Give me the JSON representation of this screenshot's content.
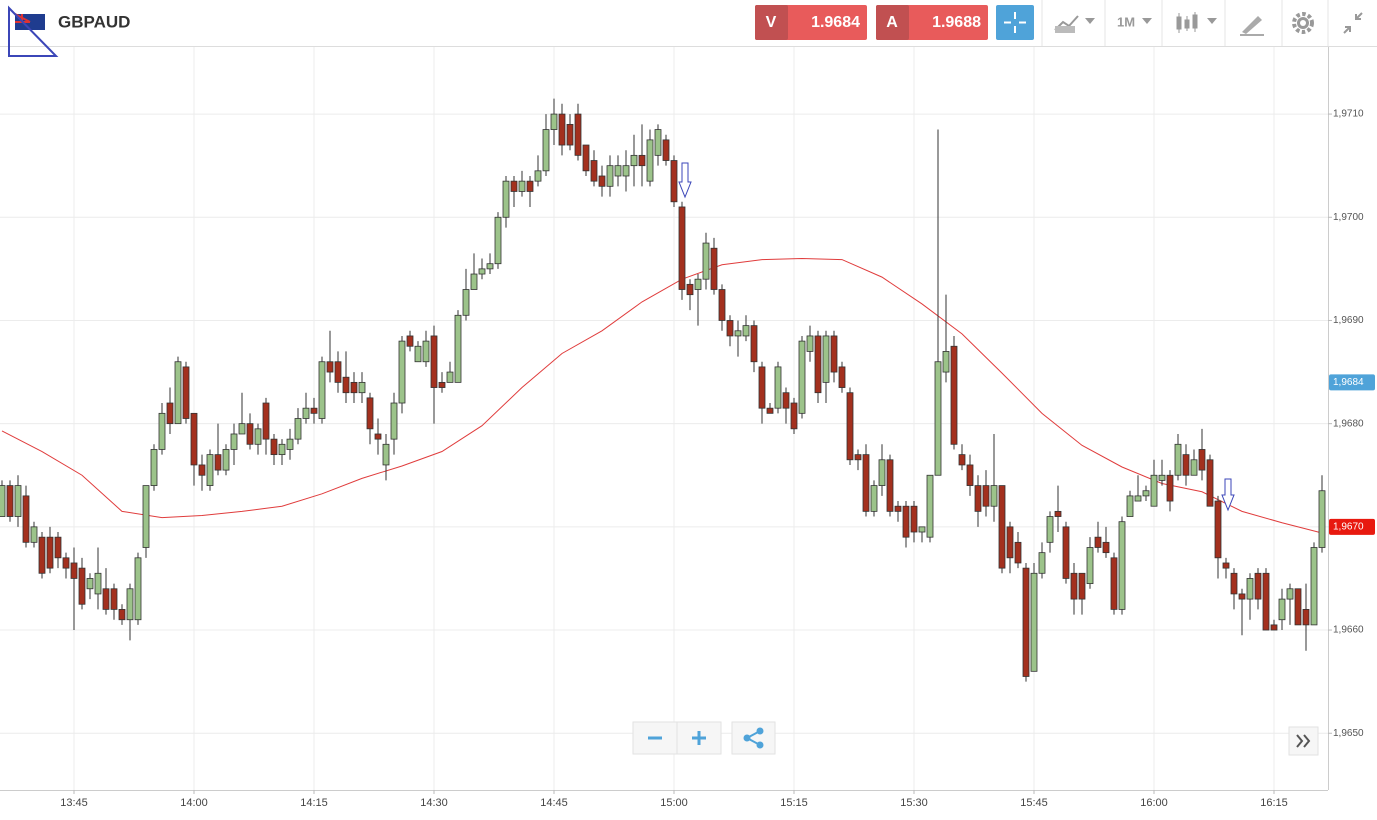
{
  "header": {
    "symbol": "GBPAUD",
    "sell": {
      "label": "V",
      "price": 1.9684
    },
    "buy": {
      "label": "A",
      "price": 1.9688
    },
    "timeframe": "1M"
  },
  "chart_data": {
    "type": "candlestick",
    "x": [
      "13:36",
      "13:37",
      "13:38",
      "13:39",
      "13:40",
      "13:41",
      "13:42",
      "13:43",
      "13:44",
      "13:45",
      "13:46",
      "13:47",
      "13:48",
      "13:49",
      "13:50",
      "13:51",
      "13:52",
      "13:53",
      "13:54",
      "13:55",
      "13:56",
      "13:57",
      "13:58",
      "13:59",
      "14:00",
      "14:01",
      "14:02",
      "14:03",
      "14:04",
      "14:05",
      "14:06",
      "14:07",
      "14:08",
      "14:09",
      "14:10",
      "14:11",
      "14:12",
      "14:13",
      "14:14",
      "14:15",
      "14:16",
      "14:17",
      "14:18",
      "14:19",
      "14:20",
      "14:21",
      "14:22",
      "14:23",
      "14:24",
      "14:25",
      "14:26",
      "14:27",
      "14:28",
      "14:29",
      "14:30",
      "14:31",
      "14:32",
      "14:33",
      "14:34",
      "14:35",
      "14:36",
      "14:37",
      "14:38",
      "14:39",
      "14:40",
      "14:41",
      "14:42",
      "14:43",
      "14:44",
      "14:45",
      "14:46",
      "14:47",
      "14:48",
      "14:49",
      "14:50",
      "14:51",
      "14:52",
      "14:53",
      "14:54",
      "14:55",
      "14:56",
      "14:57",
      "14:58",
      "14:59",
      "15:00",
      "15:01",
      "15:02",
      "15:03",
      "15:04",
      "15:05",
      "15:06",
      "15:07",
      "15:08",
      "15:09",
      "15:10",
      "15:11",
      "15:12",
      "15:13",
      "15:14",
      "15:15",
      "15:16",
      "15:17",
      "15:18",
      "15:19",
      "15:20",
      "15:21",
      "15:22",
      "15:23",
      "15:24",
      "15:25",
      "15:26",
      "15:27",
      "15:28",
      "15:29",
      "15:30",
      "15:31",
      "15:32",
      "15:33",
      "15:34",
      "15:35",
      "15:36",
      "15:37",
      "15:38",
      "15:39",
      "15:40",
      "15:41",
      "15:42",
      "15:43",
      "15:44",
      "15:45",
      "15:46",
      "15:47",
      "15:48",
      "15:49",
      "15:50",
      "15:51",
      "15:52",
      "15:53",
      "15:54",
      "15:55",
      "15:56",
      "15:57",
      "15:58",
      "15:59",
      "16:00",
      "16:01",
      "16:02",
      "16:03",
      "16:04",
      "16:05",
      "16:06",
      "16:07",
      "16:08",
      "16:09",
      "16:10",
      "16:11",
      "16:12",
      "16:13",
      "16:14",
      "16:15",
      "16:16",
      "16:17",
      "16:18",
      "16:19",
      "16:20",
      "16:21"
    ],
    "open": [
      1.9671,
      1.9674,
      1.9671,
      1.9673,
      1.96685,
      1.9669,
      1.9669,
      1.9669,
      1.9667,
      1.96665,
      1.9666,
      1.9664,
      1.96635,
      1.9664,
      1.9664,
      1.9662,
      1.9661,
      1.9661,
      1.9668,
      1.9674,
      1.96775,
      1.9682,
      1.968,
      1.96855,
      1.9681,
      1.9676,
      1.9674,
      1.9677,
      1.96755,
      1.96775,
      1.9679,
      1.968,
      1.9678,
      1.9682,
      1.96785,
      1.9677,
      1.96775,
      1.96785,
      1.96805,
      1.96815,
      1.96805,
      1.9686,
      1.9686,
      1.96845,
      1.9684,
      1.9683,
      1.96825,
      1.9679,
      1.9676,
      1.96785,
      1.9682,
      1.96885,
      1.9686,
      1.9686,
      1.96885,
      1.9684,
      1.9684,
      1.9684,
      1.96905,
      1.9693,
      1.96945,
      1.9695,
      1.96955,
      1.97,
      1.97035,
      1.97025,
      1.97035,
      1.97035,
      1.97045,
      1.97085,
      1.971,
      1.9709,
      1.971,
      1.9707,
      1.97055,
      1.9704,
      1.9703,
      1.9704,
      1.9704,
      1.9705,
      1.9706,
      1.97035,
      1.9706,
      1.97075,
      1.97055,
      1.9701,
      1.96935,
      1.9693,
      1.9694,
      1.9697,
      1.9693,
      1.969,
      1.96885,
      1.96885,
      1.96895,
      1.96855,
      1.96815,
      1.96815,
      1.9683,
      1.9682,
      1.9681,
      1.9687,
      1.96885,
      1.9684,
      1.96885,
      1.96855,
      1.9683,
      1.9677,
      1.9677,
      1.96715,
      1.9674,
      1.96765,
      1.9672,
      1.9672,
      1.9672,
      1.96695,
      1.9669,
      1.9675,
      1.9685,
      1.96875,
      1.9677,
      1.9676,
      1.9674,
      1.9674,
      1.9672,
      1.9674,
      1.967,
      1.96685,
      1.9666,
      1.9656,
      1.96655,
      1.96685,
      1.96715,
      1.967,
      1.96655,
      1.96655,
      1.96645,
      1.9669,
      1.96685,
      1.9667,
      1.9662,
      1.9671,
      1.96725,
      1.9673,
      1.9672,
      1.96745,
      1.9675,
      1.9675,
      1.9677,
      1.9675,
      1.96775,
      1.96765,
      1.96725,
      1.96665,
      1.96655,
      1.96635,
      1.9663,
      1.96655,
      1.96655,
      1.96605,
      1.9661,
      1.9663,
      1.9664,
      1.9662,
      1.96605,
      1.9668
    ],
    "high": [
      1.96745,
      1.96745,
      1.9675,
      1.9674,
      1.96705,
      1.96695,
      1.967,
      1.96695,
      1.96675,
      1.9668,
      1.9667,
      1.96655,
      1.9668,
      1.9666,
      1.96645,
      1.96625,
      1.96645,
      1.96675,
      1.9674,
      1.9678,
      1.9682,
      1.96835,
      1.96865,
      1.9686,
      1.9681,
      1.9677,
      1.96775,
      1.968,
      1.9678,
      1.968,
      1.9683,
      1.9681,
      1.968,
      1.96825,
      1.9679,
      1.96785,
      1.96795,
      1.96815,
      1.9683,
      1.96825,
      1.96865,
      1.9689,
      1.9687,
      1.9687,
      1.9685,
      1.9685,
      1.9683,
      1.96805,
      1.9679,
      1.9683,
      1.96885,
      1.9689,
      1.9688,
      1.9689,
      1.96895,
      1.9685,
      1.9686,
      1.9691,
      1.9695,
      1.96965,
      1.9696,
      1.96965,
      1.97005,
      1.9704,
      1.9704,
      1.97045,
      1.9704,
      1.9706,
      1.971,
      1.97115,
      1.9711,
      1.971,
      1.9711,
      1.9707,
      1.97065,
      1.9705,
      1.9706,
      1.9706,
      1.97065,
      1.9708,
      1.9709,
      1.97085,
      1.9709,
      1.9708,
      1.9706,
      1.97015,
      1.9694,
      1.96945,
      1.96985,
      1.9698,
      1.96935,
      1.96905,
      1.969,
      1.96905,
      1.969,
      1.9686,
      1.9682,
      1.9686,
      1.96835,
      1.96825,
      1.96885,
      1.96895,
      1.9689,
      1.9689,
      1.9689,
      1.9686,
      1.96835,
      1.96775,
      1.9678,
      1.96745,
      1.9678,
      1.9677,
      1.96725,
      1.96725,
      1.96725,
      1.967,
      1.9675,
      1.97085,
      1.96925,
      1.96885,
      1.9678,
      1.9677,
      1.9675,
      1.96755,
      1.9679,
      1.9674,
      1.96705,
      1.96695,
      1.96665,
      1.96665,
      1.96685,
      1.96715,
      1.9674,
      1.96705,
      1.96665,
      1.96655,
      1.9669,
      1.96705,
      1.967,
      1.96675,
      1.9671,
      1.96735,
      1.9675,
      1.9674,
      1.96765,
      1.96765,
      1.96755,
      1.9679,
      1.9678,
      1.96775,
      1.96795,
      1.9677,
      1.9673,
      1.9667,
      1.9666,
      1.9664,
      1.96655,
      1.9666,
      1.9666,
      1.9661,
      1.9664,
      1.96645,
      1.9664,
      1.96645,
      1.96685,
      1.9675
    ],
    "low": [
      1.9671,
      1.96705,
      1.967,
      1.9668,
      1.9668,
      1.9665,
      1.96655,
      1.9666,
      1.9665,
      1.966,
      1.9662,
      1.9663,
      1.9662,
      1.96615,
      1.9661,
      1.96605,
      1.9659,
      1.96605,
      1.9667,
      1.96735,
      1.9677,
      1.9679,
      1.968,
      1.968,
      1.9674,
      1.96735,
      1.96735,
      1.9675,
      1.9675,
      1.9676,
      1.9679,
      1.96775,
      1.9677,
      1.9677,
      1.9676,
      1.9676,
      1.96765,
      1.9678,
      1.968,
      1.968,
      1.968,
      1.9684,
      1.9683,
      1.9682,
      1.9682,
      1.9682,
      1.9678,
      1.9677,
      1.96745,
      1.9677,
      1.9681,
      1.9687,
      1.9686,
      1.96855,
      1.968,
      1.9683,
      1.9684,
      1.9684,
      1.969,
      1.9693,
      1.9694,
      1.96945,
      1.9695,
      1.9699,
      1.9701,
      1.9702,
      1.9701,
      1.9703,
      1.9704,
      1.9707,
      1.9706,
      1.97065,
      1.97055,
      1.9704,
      1.9703,
      1.9702,
      1.9702,
      1.9703,
      1.97025,
      1.9703,
      1.9703,
      1.9703,
      1.9705,
      1.9705,
      1.9701,
      1.9692,
      1.9691,
      1.96895,
      1.9693,
      1.96925,
      1.9689,
      1.96875,
      1.96865,
      1.9688,
      1.9685,
      1.968,
      1.9681,
      1.9681,
      1.968,
      1.9679,
      1.96805,
      1.9686,
      1.9682,
      1.9682,
      1.9684,
      1.9683,
      1.9676,
      1.96755,
      1.9671,
      1.9671,
      1.9673,
      1.9671,
      1.96705,
      1.9668,
      1.96685,
      1.96685,
      1.96685,
      1.9675,
      1.9684,
      1.96775,
      1.96755,
      1.9673,
      1.967,
      1.9671,
      1.96705,
      1.96655,
      1.96655,
      1.9666,
      1.9655,
      1.9656,
      1.9665,
      1.96675,
      1.96695,
      1.96645,
      1.96615,
      1.96615,
      1.9664,
      1.96675,
      1.9667,
      1.96615,
      1.96615,
      1.9671,
      1.96725,
      1.96725,
      1.9672,
      1.9674,
      1.96715,
      1.96745,
      1.9674,
      1.9675,
      1.96745,
      1.9672,
      1.9665,
      1.9665,
      1.9662,
      1.96595,
      1.9661,
      1.9662,
      1.966,
      1.966,
      1.966,
      1.96605,
      1.96605,
      1.9658,
      1.96605,
      1.96675
    ],
    "close": [
      1.9674,
      1.9671,
      1.9674,
      1.96685,
      1.967,
      1.96655,
      1.9666,
      1.9667,
      1.9666,
      1.9665,
      1.96625,
      1.9665,
      1.96655,
      1.9662,
      1.9662,
      1.9661,
      1.9664,
      1.9667,
      1.9674,
      1.96775,
      1.9681,
      1.968,
      1.9686,
      1.96805,
      1.9676,
      1.9675,
      1.9677,
      1.96755,
      1.96775,
      1.9679,
      1.968,
      1.9678,
      1.96795,
      1.96785,
      1.9677,
      1.9678,
      1.96785,
      1.96805,
      1.96815,
      1.9681,
      1.9686,
      1.9685,
      1.9684,
      1.9683,
      1.9683,
      1.9684,
      1.96795,
      1.96785,
      1.9678,
      1.9682,
      1.9688,
      1.96875,
      1.96875,
      1.9688,
      1.96835,
      1.96835,
      1.9685,
      1.96905,
      1.9693,
      1.96945,
      1.9695,
      1.96955,
      1.97,
      1.97035,
      1.97025,
      1.97035,
      1.97025,
      1.97045,
      1.97085,
      1.971,
      1.9707,
      1.9707,
      1.9706,
      1.97045,
      1.97035,
      1.9703,
      1.9705,
      1.9705,
      1.9705,
      1.9706,
      1.9705,
      1.97075,
      1.97085,
      1.97055,
      1.97015,
      1.9693,
      1.96925,
      1.9694,
      1.96975,
      1.9693,
      1.969,
      1.96885,
      1.9689,
      1.96895,
      1.9686,
      1.96815,
      1.9681,
      1.96855,
      1.96815,
      1.96795,
      1.9688,
      1.96885,
      1.9683,
      1.96885,
      1.9685,
      1.96835,
      1.96765,
      1.96765,
      1.96715,
      1.9674,
      1.96765,
      1.96715,
      1.96715,
      1.9669,
      1.96695,
      1.967,
      1.9675,
      1.9686,
      1.9687,
      1.9678,
      1.9676,
      1.9674,
      1.96715,
      1.9672,
      1.9674,
      1.9666,
      1.9667,
      1.96665,
      1.96555,
      1.96655,
      1.96675,
      1.9671,
      1.9671,
      1.9665,
      1.9663,
      1.9663,
      1.9668,
      1.9668,
      1.96675,
      1.9662,
      1.96705,
      1.9673,
      1.9673,
      1.96735,
      1.9675,
      1.9675,
      1.96725,
      1.9678,
      1.9675,
      1.96765,
      1.96755,
      1.9672,
      1.9667,
      1.9666,
      1.96635,
      1.9663,
      1.9665,
      1.9663,
      1.966,
      1.966,
      1.9663,
      1.9664,
      1.96605,
      1.96605,
      1.9668,
      1.96735
    ],
    "up_color": "#9cc38a",
    "down_color": "#a3301e",
    "ma": {
      "color": "#e03c3c",
      "x": [
        "13:36",
        "13:41",
        "13:46",
        "13:51",
        "13:56",
        "14:01",
        "14:06",
        "14:11",
        "14:16",
        "14:21",
        "14:26",
        "14:31",
        "14:36",
        "14:41",
        "14:46",
        "14:51",
        "14:56",
        "15:01",
        "15:06",
        "15:11",
        "15:16",
        "15:21",
        "15:26",
        "15:31",
        "15:36",
        "15:41",
        "15:46",
        "15:51",
        "15:56",
        "16:01",
        "16:06",
        "16:11",
        "16:16",
        "16:21"
      ],
      "values": [
        1.96793,
        1.96773,
        1.9675,
        1.96715,
        1.96709,
        1.96711,
        1.96715,
        1.9672,
        1.96732,
        1.96747,
        1.96759,
        1.96773,
        1.96798,
        1.96835,
        1.96868,
        1.9689,
        1.96918,
        1.9694,
        1.96954,
        1.96959,
        1.9696,
        1.96959,
        1.96942,
        1.96916,
        1.96887,
        1.96849,
        1.9681,
        1.96779,
        1.96758,
        1.96742,
        1.96734,
        1.96715,
        1.96704,
        1.96694
      ]
    },
    "ylim": [
      1.96445,
      1.97165
    ],
    "yticks": [
      {
        "value": 1.965,
        "label": "1,9650"
      },
      {
        "value": 1.966,
        "label": "1,9660"
      },
      {
        "value": 1.967,
        "label": "1,9670"
      },
      {
        "value": 1.968,
        "label": "1,9680"
      },
      {
        "value": 1.969,
        "label": "1,9690"
      },
      {
        "value": 1.97,
        "label": "1,9700"
      },
      {
        "value": 1.971,
        "label": "1,9710"
      }
    ],
    "xticks": [
      "13:45",
      "14:00",
      "14:15",
      "14:30",
      "14:45",
      "15:00",
      "15:15",
      "15:30",
      "15:45",
      "16:00",
      "16:15"
    ],
    "grid": true,
    "price_tags": [
      {
        "value": 1.9684,
        "label": "1,9684",
        "color": "#4fa3d9"
      },
      {
        "value": 1.967,
        "label": "1,9670",
        "color": "#e8190f"
      }
    ]
  }
}
